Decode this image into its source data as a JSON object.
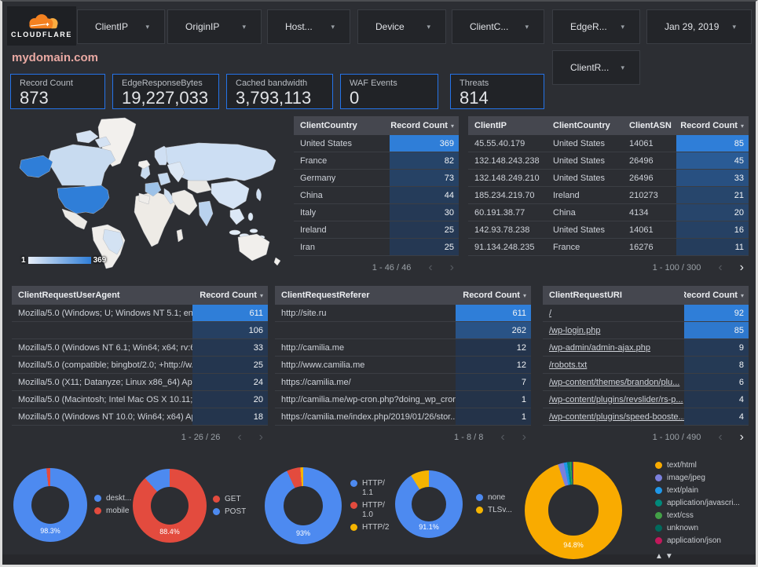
{
  "header": {
    "brand": "CLOUDFLARE",
    "domain": "mydomain.com",
    "filters": [
      {
        "label": "ClientIP"
      },
      {
        "label": "OriginIP"
      },
      {
        "label": "Host..."
      },
      {
        "label": "Device"
      },
      {
        "label": "ClientC..."
      },
      {
        "label": "EdgeR..."
      }
    ],
    "date_filter": {
      "label": "Jan 29, 2019"
    },
    "filter_row2": {
      "label": "ClientR..."
    }
  },
  "icons": {
    "caret": "▾",
    "sort_desc": "▾",
    "prev": "‹",
    "next": "›",
    "legend_sort": "▲▼"
  },
  "scorecards": [
    {
      "label": "Record Count",
      "value": "873"
    },
    {
      "label": "EdgeResponseBytes",
      "value": "19,227,033"
    },
    {
      "label": "Cached bandwidth",
      "value": "3,793,113"
    },
    {
      "label": "WAF Events",
      "value": "0"
    },
    {
      "label": "Threats",
      "value": "814"
    }
  ],
  "map": {
    "legend_min": "1",
    "legend_max": "369",
    "accent": "#2f7ed8"
  },
  "heat": {
    "low": "#243349",
    "high": "#2f7ed8"
  },
  "tables": [
    {
      "id": "client_country",
      "columns": [
        {
          "label": "ClientCountry",
          "type": "text"
        },
        {
          "label": "Record Count",
          "type": "bar",
          "sort": "desc"
        }
      ],
      "rows": [
        [
          "United States",
          369
        ],
        [
          "France",
          82
        ],
        [
          "Germany",
          73
        ],
        [
          "China",
          44
        ],
        [
          "Italy",
          30
        ],
        [
          "Ireland",
          25
        ],
        [
          "Iran",
          25
        ]
      ],
      "pagination": {
        "range": "1 - 46 / 46",
        "prev": false,
        "next": false
      }
    },
    {
      "id": "client_ip",
      "columns": [
        {
          "label": "ClientIP",
          "type": "text"
        },
        {
          "label": "ClientCountry",
          "type": "text"
        },
        {
          "label": "ClientASN",
          "type": "text"
        },
        {
          "label": "Record Count",
          "type": "bar",
          "sort": "desc"
        }
      ],
      "rows": [
        [
          "45.55.40.179",
          "United States",
          "14061",
          85
        ],
        [
          "132.148.243.238",
          "United States",
          "26496",
          45
        ],
        [
          "132.148.249.210",
          "United States",
          "26496",
          33
        ],
        [
          "185.234.219.70",
          "Ireland",
          "210273",
          21
        ],
        [
          "60.191.38.77",
          "China",
          "4134",
          20
        ],
        [
          "142.93.78.238",
          "United States",
          "14061",
          16
        ],
        [
          "91.134.248.235",
          "France",
          "16276",
          11
        ]
      ],
      "pagination": {
        "range": "1 - 100 / 300",
        "prev": false,
        "next": true
      }
    },
    {
      "id": "user_agent",
      "columns": [
        {
          "label": "ClientRequestUserAgent",
          "type": "text"
        },
        {
          "label": "Record Count",
          "type": "bar",
          "sort": "desc"
        }
      ],
      "rows": [
        [
          "Mozilla/5.0 (Windows; U; Windows NT 5.1; en-U...",
          611
        ],
        [
          "",
          106
        ],
        [
          "Mozilla/5.0 (Windows NT 6.1; Win64; x64; rv:64...",
          33
        ],
        [
          "Mozilla/5.0 (compatible; bingbot/2.0; +http://w...",
          25
        ],
        [
          "Mozilla/5.0 (X11; Datanyze; Linux x86_64) Appl...",
          24
        ],
        [
          "Mozilla/5.0 (Macintosh; Intel Mac OS X 10.11; r...",
          20
        ],
        [
          "Mozilla/5.0 (Windows NT 10.0; Win64; x64) App...",
          18
        ]
      ],
      "pagination": {
        "range": "1 - 26 / 26",
        "prev": false,
        "next": false
      }
    },
    {
      "id": "referer",
      "columns": [
        {
          "label": "ClientRequestReferer",
          "type": "text"
        },
        {
          "label": "Record Count",
          "type": "bar",
          "sort": "desc"
        }
      ],
      "rows": [
        [
          "http://site.ru",
          611
        ],
        [
          "",
          262
        ],
        [
          "http://camilia.me",
          12
        ],
        [
          "http://www.camilia.me",
          12
        ],
        [
          "https://camilia.me/",
          7
        ],
        [
          "http://camilia.me/wp-cron.php?doing_wp_cron...",
          1
        ],
        [
          "https://camilia.me/index.php/2019/01/26/stor...",
          1
        ]
      ],
      "pagination": {
        "range": "1 - 8 / 8",
        "prev": false,
        "next": false
      }
    },
    {
      "id": "uri",
      "columns": [
        {
          "label": "ClientRequestURI",
          "type": "link"
        },
        {
          "label": "Record Count",
          "type": "bar",
          "sort": "desc"
        }
      ],
      "rows": [
        [
          "/",
          92
        ],
        [
          "/wp-login.php",
          85
        ],
        [
          "/wp-admin/admin-ajax.php",
          9
        ],
        [
          "/robots.txt",
          8
        ],
        [
          "/wp-content/themes/brandon/plu...",
          6
        ],
        [
          "/wp-content/plugins/revslider/rs-p...",
          4
        ],
        [
          "/wp-content/plugins/speed-booste...",
          4
        ]
      ],
      "pagination": {
        "range": "1 - 100 / 490",
        "prev": false,
        "next": true
      }
    }
  ],
  "chart_data": [
    {
      "type": "pie",
      "name": "device-type",
      "donut": true,
      "center_label": "98.3%",
      "legend_position": "right",
      "series": [
        {
          "name": "deskt...",
          "value": 98.3,
          "color": "#4d8af0"
        },
        {
          "name": "mobile",
          "value": 1.7,
          "color": "#e34b3e"
        }
      ]
    },
    {
      "type": "pie",
      "name": "request-method",
      "donut": true,
      "center_label": "88.4%",
      "legend_position": "right",
      "series": [
        {
          "name": "GET",
          "value": 88.4,
          "color": "#e34b3e"
        },
        {
          "name": "POST",
          "value": 11.6,
          "color": "#4d8af0"
        }
      ]
    },
    {
      "type": "pie",
      "name": "http-protocol",
      "donut": true,
      "center_label": "93%",
      "legend_position": "right",
      "series": [
        {
          "name": "HTTP/\n1.1",
          "value": 93,
          "color": "#4d8af0"
        },
        {
          "name": "HTTP/\n1.0",
          "value": 5.8,
          "color": "#e34b3e"
        },
        {
          "name": "HTTP/2",
          "value": 1.2,
          "color": "#f5b400"
        }
      ]
    },
    {
      "type": "pie",
      "name": "tls-version",
      "donut": true,
      "center_label": "91.1%",
      "legend_position": "right",
      "series": [
        {
          "name": "none",
          "value": 91.1,
          "color": "#4d8af0"
        },
        {
          "name": "TLSv...",
          "value": 8.9,
          "color": "#f5b400"
        }
      ]
    },
    {
      "type": "pie",
      "name": "content-type",
      "donut": true,
      "center_label": "94.8%",
      "legend_position": "right",
      "legend_sort_arrows": true,
      "series": [
        {
          "name": "text/html",
          "value": 94.8,
          "color": "#f9ab00"
        },
        {
          "name": "image/jpeg",
          "value": 2.0,
          "color": "#7b80dd"
        },
        {
          "name": "text/plain",
          "value": 1.1,
          "color": "#1f97e8"
        },
        {
          "name": "application/javascri...",
          "value": 0.9,
          "color": "#00897b"
        },
        {
          "name": "text/css",
          "value": 0.5,
          "color": "#43a047"
        },
        {
          "name": "unknown",
          "value": 0.4,
          "color": "#00695c"
        },
        {
          "name": "application/json",
          "value": 0.3,
          "color": "#c2185b"
        }
      ]
    }
  ]
}
